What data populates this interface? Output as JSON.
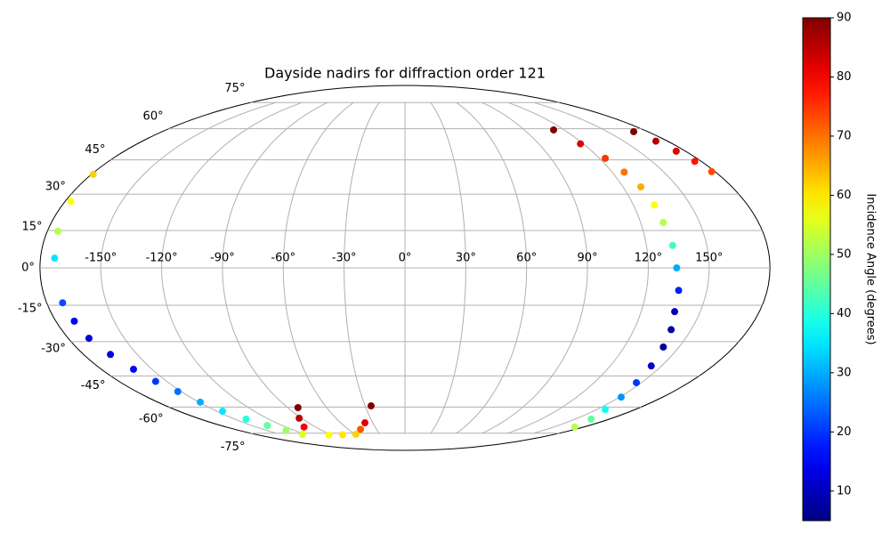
{
  "chart_data": {
    "type": "scatter",
    "projection": "mollweide",
    "title": "Dayside nadirs for diffraction order 121",
    "x": [
      112,
      118,
      123.5,
      127,
      129.8,
      131,
      131.5,
      133,
      134,
      136,
      137,
      139.5,
      141.4,
      144,
      146.8,
      151,
      156.6,
      164,
      171,
      169.5,
      172,
      174,
      176,
      178,
      -179,
      -177,
      -174.7,
      -173,
      -172,
      -170.5,
      -168.9,
      -165,
      -161,
      -157,
      -152.3,
      -149,
      -145.3,
      -140,
      -134.8,
      -129,
      -123,
      -82,
      -92,
      -101.7,
      -93.5,
      -76,
      -59,
      -47,
      -37.3,
      -25.5
    ],
    "y": [
      59.4,
      52.5,
      45.7,
      39.5,
      33.1,
      25.5,
      18.3,
      9,
      0,
      -9,
      -17.6,
      -25,
      -32.3,
      -40.5,
      -48.1,
      -55,
      -61.3,
      -66.5,
      -71.1,
      58.5,
      53.8,
      49,
      44.3,
      39.7,
      38.5,
      27,
      14.7,
      3.9,
      -14,
      -21.5,
      -28.6,
      -35.5,
      -42,
      -47.5,
      -52.3,
      -57.5,
      -62.2,
      -66.5,
      -70.2,
      -73.2,
      -75.7,
      -60.3,
      -66,
      -71.1,
      -76.2,
      -76,
      -75.7,
      -72.5,
      -68.6,
      -59.4
    ],
    "values": [
      90,
      82,
      75,
      70,
      65,
      58,
      52,
      42,
      30,
      18,
      10,
      8,
      8,
      12,
      20,
      28,
      38,
      45,
      52,
      90,
      86,
      82,
      78,
      73,
      62,
      58,
      52,
      35,
      22,
      16,
      12,
      13,
      16,
      20,
      25,
      30,
      35,
      40,
      45,
      50,
      55,
      90,
      85,
      80,
      58,
      60,
      62,
      72,
      82,
      90
    ],
    "colormap": "jet",
    "xticks": [
      {
        "value": -150,
        "label": "-150°"
      },
      {
        "value": -120,
        "label": "-120°"
      },
      {
        "value": -90,
        "label": "-90°"
      },
      {
        "value": -60,
        "label": "-60°"
      },
      {
        "value": -30,
        "label": "-30°"
      },
      {
        "value": 0,
        "label": "0°"
      },
      {
        "value": 30,
        "label": "30°"
      },
      {
        "value": 60,
        "label": "60°"
      },
      {
        "value": 90,
        "label": "90°"
      },
      {
        "value": 120,
        "label": "120°"
      },
      {
        "value": 150,
        "label": "150°"
      }
    ],
    "yticks": [
      {
        "value": -75,
        "label": "-75°"
      },
      {
        "value": -60,
        "label": "-60°"
      },
      {
        "value": -45,
        "label": "-45°"
      },
      {
        "value": -30,
        "label": "-30°"
      },
      {
        "value": -15,
        "label": "-15°"
      },
      {
        "value": 0,
        "label": "0°"
      },
      {
        "value": 15,
        "label": "15°"
      },
      {
        "value": 30,
        "label": "30°"
      },
      {
        "value": 45,
        "label": "45°"
      },
      {
        "value": 60,
        "label": "60°"
      },
      {
        "value": 75,
        "label": "75°"
      }
    ],
    "grid": true,
    "colorbar": {
      "label": "Incidence Angle (degrees)",
      "lim": [
        5,
        90
      ],
      "ticks": [
        10,
        20,
        30,
        40,
        50,
        60,
        70,
        80,
        90
      ]
    }
  }
}
